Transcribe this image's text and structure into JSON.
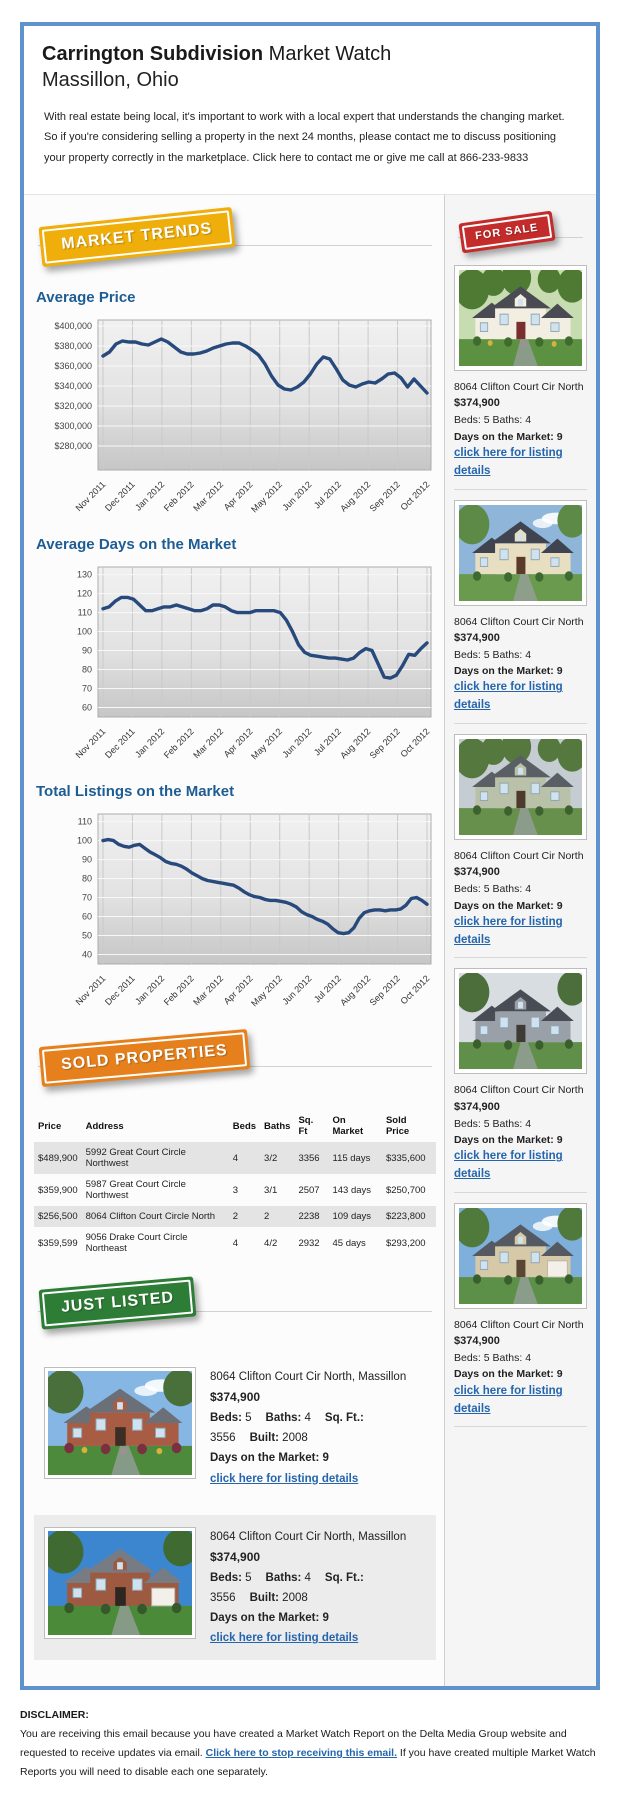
{
  "header": {
    "title_main": "Carrington Subdivision",
    "title_suffix": " Market Watch",
    "subtitle": "Massillon, Ohio",
    "intro": "With real estate being local, it's important to work with a local expert that understands the changing market. So if you're considering selling a property in the next 24 months, please contact me to discuss positioning your property correctly in the marketplace. Click here to contact me or give me call at 866-233-9833"
  },
  "badges": {
    "market_trends": "MARKET TRENDS",
    "for_sale": "FOR SALE",
    "sold_properties": "SOLD PROPERTIES",
    "just_listed": "JUST LISTED"
  },
  "sections": {
    "avg_price": "Average Price",
    "avg_days": "Average Days on the Market",
    "total_listings": "Total Listings on the Market"
  },
  "colors": {
    "container_border": "#5e93ce",
    "heading_blue": "#1e5d93",
    "chart_line": "#27497c",
    "link_blue": "#2465ad",
    "badge_gold": "#efae09",
    "badge_red": "#c42b2b",
    "badge_orange": "#e5801c",
    "badge_green": "#2e7d36"
  },
  "chart_data": [
    {
      "type": "line",
      "title": "Average Price",
      "x_labels": [
        "Nov 2011",
        "Dec 2011",
        "Jan 2012",
        "Feb 2012",
        "Mar 2012",
        "Apr 2012",
        "May 2012",
        "Jun 2012",
        "Jul 2012",
        "Aug 2012",
        "Sep 2012",
        "Oct 2012"
      ],
      "y_tick_values": [
        400000,
        380000,
        360000,
        340000,
        320000,
        300000,
        280000
      ],
      "y_tick_labels": [
        "$400,000",
        "$380,000",
        "$360,000",
        "$340,000",
        "$320,000",
        "$300,000",
        "$280,000"
      ],
      "ylim": [
        256000,
        406000
      ],
      "grid": true,
      "legend": "none",
      "values": [
        370000,
        374000,
        382000,
        385000,
        384000,
        384000,
        382000,
        381000,
        384000,
        387000,
        384000,
        379000,
        374000,
        372000,
        372000,
        373000,
        375000,
        378000,
        380000,
        382000,
        383000,
        383000,
        380000,
        376000,
        371000,
        362000,
        350000,
        341000,
        337000,
        336000,
        339000,
        344000,
        352000,
        362000,
        369000,
        367000,
        357000,
        346000,
        341000,
        339000,
        342000,
        344000,
        343000,
        347000,
        352000,
        353000,
        348000,
        339000,
        347000,
        340000,
        333000
      ]
    },
    {
      "type": "line",
      "title": "Average Days on the Market",
      "x_labels": [
        "Nov 2011",
        "Dec 2011",
        "Jan 2012",
        "Feb 2012",
        "Mar 2012",
        "Apr 2012",
        "May 2012",
        "Jun 2012",
        "Jul 2012",
        "Aug 2012",
        "Sep 2012",
        "Oct 2012"
      ],
      "y_tick_values": [
        130,
        120,
        110,
        100,
        90,
        80,
        70,
        60
      ],
      "y_tick_labels": [
        "130",
        "120",
        "110",
        "100",
        "90",
        "80",
        "70",
        "60"
      ],
      "ylim": [
        55,
        134
      ],
      "grid": true,
      "legend": "none",
      "values": [
        112,
        113,
        116,
        118,
        118,
        117,
        114,
        111,
        111,
        112,
        113,
        113,
        114,
        113,
        112,
        111,
        111,
        112,
        114,
        114,
        113,
        111,
        110,
        110,
        110,
        111,
        111,
        111,
        111,
        110,
        106,
        100,
        93,
        89,
        87.5,
        87,
        86.5,
        86,
        86,
        85.5,
        85,
        86,
        89,
        91,
        90,
        83,
        76,
        75.5,
        77,
        82,
        88,
        87.5,
        91,
        94
      ]
    },
    {
      "type": "line",
      "title": "Total Listings on the Market",
      "x_labels": [
        "Nov 2011",
        "Dec 2011",
        "Jan 2012",
        "Feb 2012",
        "Mar 2012",
        "Apr 2012",
        "May 2012",
        "Jun 2012",
        "Jul 2012",
        "Aug 2012",
        "Sep 2012",
        "Oct 2012"
      ],
      "y_tick_values": [
        110,
        100,
        90,
        80,
        70,
        60,
        50,
        40
      ],
      "y_tick_labels": [
        "110",
        "100",
        "90",
        "80",
        "70",
        "60",
        "50",
        "40"
      ],
      "ylim": [
        35,
        114
      ],
      "grid": true,
      "legend": "none",
      "values": [
        100,
        100.5,
        100,
        98,
        97,
        96.5,
        97.5,
        98,
        96,
        94,
        92.5,
        91,
        89,
        88,
        87.5,
        86.5,
        85,
        83,
        81.5,
        80,
        79,
        78.5,
        78,
        77.5,
        77,
        76.5,
        75,
        73,
        71.5,
        70.5,
        70,
        69,
        68.5,
        68.5,
        68,
        67.5,
        66.5,
        65,
        62.5,
        61,
        60,
        58.5,
        57.5,
        56,
        53.5,
        51.5,
        51,
        51.5,
        54,
        59,
        62,
        63,
        63.5,
        63.5,
        63,
        63.5,
        63.5,
        64,
        66,
        69.5,
        70,
        68.5,
        66.5
      ]
    }
  ],
  "for_sale_listings": [
    {
      "address": "8064 Clifton Court Cir North",
      "price": "$374,900",
      "beds_baths": "Beds: 5 Baths: 4",
      "days": "Days on the Market: 9",
      "link": "click here for listing details"
    },
    {
      "address": "8064 Clifton Court Cir North",
      "price": "$374,900",
      "beds_baths": "Beds: 5 Baths: 4",
      "days": "Days on the Market: 9",
      "link": "click here for listing details"
    },
    {
      "address": "8064 Clifton Court Cir North",
      "price": "$374,900",
      "beds_baths": "Beds: 5 Baths: 4",
      "days": "Days on the Market: 9",
      "link": "click here for listing details"
    },
    {
      "address": "8064 Clifton Court Cir North",
      "price": "$374,900",
      "beds_baths": "Beds: 5 Baths: 4",
      "days": "Days on the Market: 9",
      "link": "click here for listing details"
    },
    {
      "address": "8064 Clifton Court Cir North",
      "price": "$374,900",
      "beds_baths": "Beds: 5 Baths: 4",
      "days": "Days on the Market: 9",
      "link": "click here for listing details"
    }
  ],
  "sold_table": {
    "headers": [
      "Price",
      "Address",
      "Beds",
      "Baths",
      "Sq. Ft",
      "On Market",
      "Sold Price"
    ],
    "rows": [
      [
        "$489,900",
        "5992 Great Court Circle Northwest",
        "4",
        "3/2",
        "3356",
        "115 days",
        "$335,600"
      ],
      [
        "$359,900",
        "5987 Great Court Circle Northwest",
        "3",
        "3/1",
        "2507",
        "143 days",
        "$250,700"
      ],
      [
        "$256,500",
        "8064 Clifton Court Circle North",
        "2",
        "2",
        "2238",
        "109 days",
        "$223,800"
      ],
      [
        "$359,599",
        "9056 Drake Court Circle Northeast",
        "4",
        "4/2",
        "2932",
        "45 days",
        "$293,200"
      ]
    ]
  },
  "just_listed_listings": [
    {
      "address": "8064 Clifton Court Cir North, Massillon",
      "price": "$374,900",
      "specs": [
        {
          "label": "Beds:",
          "value": " 5"
        },
        {
          "label": "Baths:",
          "value": " 4"
        },
        {
          "label": "Sq. Ft.:",
          "value": " 3556"
        },
        {
          "label": "Built:",
          "value": " 2008"
        }
      ],
      "days": "Days on the Market: 9",
      "link": "click here for listing details"
    },
    {
      "address": "8064 Clifton Court Cir North, Massillon",
      "price": "$374,900",
      "specs": [
        {
          "label": "Beds:",
          "value": " 5"
        },
        {
          "label": "Baths:",
          "value": " 4"
        },
        {
          "label": "Sq. Ft.:",
          "value": " 3556"
        },
        {
          "label": "Built:",
          "value": " 2008"
        }
      ],
      "days": "Days on the Market: 9",
      "link": "click here for listing details"
    }
  ],
  "disclaimer": {
    "heading": "DISCLAIMER:",
    "text_before": "You are receiving this email because you have created a Market Watch Report on the Delta Media Group website and requested to receive updates via email. ",
    "link": "Click here to stop receiving this email.",
    "text_after": " If you have created multiple Market Watch Reports you will need to disable each one separately."
  }
}
